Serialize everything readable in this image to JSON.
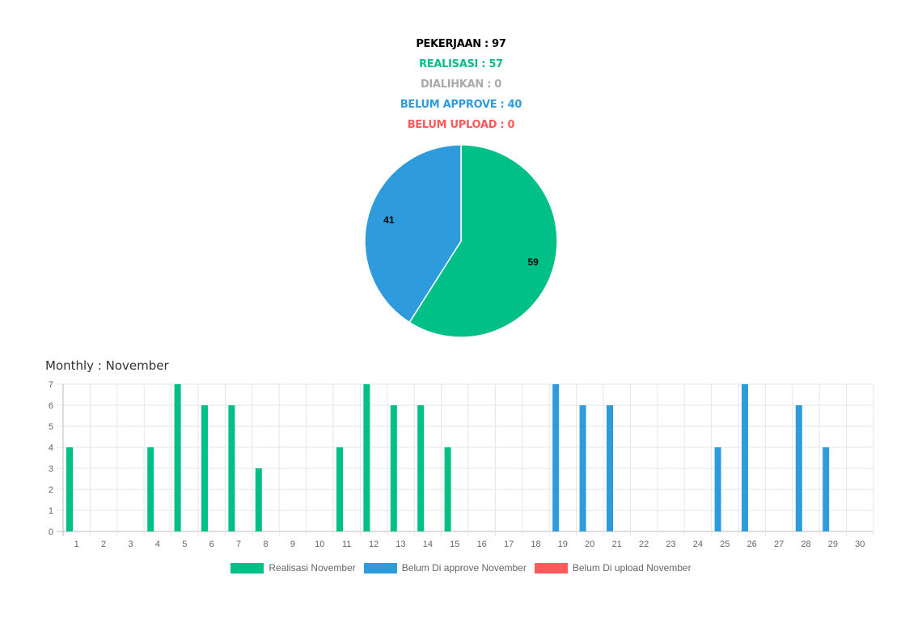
{
  "summary": {
    "pekerjaan": "PEKERJAAN : 97",
    "realisasi": "REALISASI : 57",
    "dialihkan": "DIALIHKAN : 0",
    "belum_approve": "BELUM APPROVE : 40",
    "belum_upload": "BELUM UPLOAD : 0"
  },
  "colors": {
    "realisasi": "#00bf87",
    "belum_approve": "#2e9bdc",
    "belum_upload": "#ff5a5a",
    "dialihkan": "#aaaaaa",
    "pekerjaan": "#000000"
  },
  "monthly_title": "Monthly : November",
  "chart_data": [
    {
      "type": "pie",
      "slices": [
        {
          "label": "59",
          "value": 59,
          "color": "#00bf87"
        },
        {
          "label": "41",
          "value": 41,
          "color": "#2e9bdc"
        }
      ]
    },
    {
      "type": "bar",
      "categories": [
        "1",
        "2",
        "3",
        "4",
        "5",
        "6",
        "7",
        "8",
        "9",
        "10",
        "11",
        "12",
        "13",
        "14",
        "15",
        "16",
        "17",
        "18",
        "19",
        "20",
        "21",
        "22",
        "23",
        "24",
        "25",
        "26",
        "27",
        "28",
        "29",
        "30"
      ],
      "ylim": [
        0,
        7
      ],
      "yticks": [
        "0",
        "1",
        "2",
        "3",
        "4",
        "5",
        "6",
        "7"
      ],
      "grid": true,
      "legend_position": "bottom",
      "series": [
        {
          "name": "Realisasi November",
          "color": "#00bf87",
          "values": [
            4,
            0,
            0,
            4,
            7,
            6,
            6,
            3,
            0,
            0,
            4,
            7,
            6,
            6,
            4,
            0,
            0,
            0,
            0,
            0,
            0,
            0,
            0,
            0,
            0,
            0,
            0,
            0,
            0,
            0
          ]
        },
        {
          "name": "Belum Di approve November",
          "color": "#2e9bdc",
          "values": [
            0,
            0,
            0,
            0,
            0,
            0,
            0,
            0,
            0,
            0,
            0,
            0,
            0,
            0,
            0,
            0,
            0,
            0,
            7,
            6,
            6,
            0,
            0,
            0,
            4,
            7,
            0,
            6,
            4,
            0
          ]
        },
        {
          "name": "Belum Di upload November",
          "color": "#ff5a5a",
          "values": [
            0,
            0,
            0,
            0,
            0,
            0,
            0,
            0,
            0,
            0,
            0,
            0,
            0,
            0,
            0,
            0,
            0,
            0,
            0,
            0,
            0,
            0,
            0,
            0,
            0,
            0,
            0,
            0,
            0,
            0
          ]
        }
      ]
    }
  ]
}
